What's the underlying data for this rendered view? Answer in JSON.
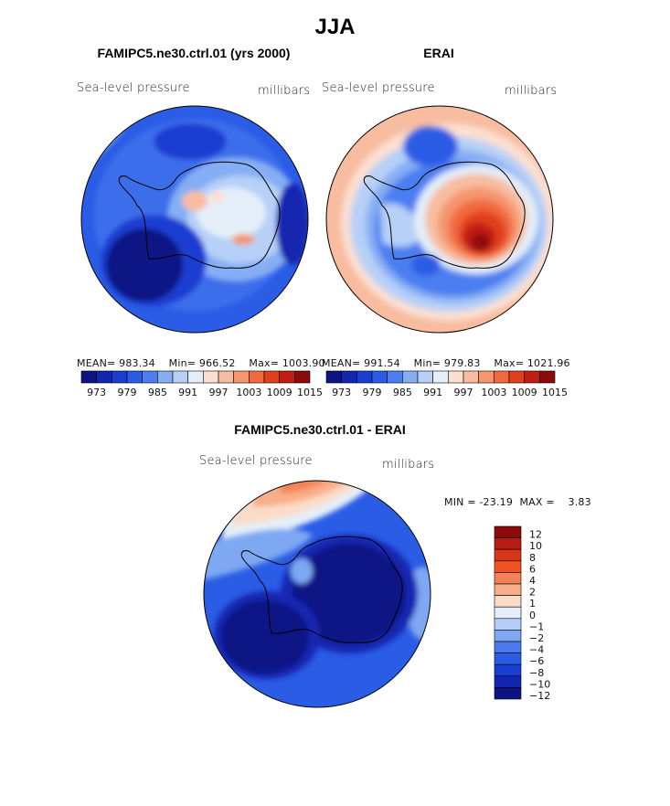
{
  "title": "JJA",
  "chart_data": [
    {
      "type": "heatmap",
      "projection": "south-polar-stereographic",
      "title": "FAMIPC5.ne30.ctrl.01 (yrs 2000)",
      "variable": "Sea-level pressure",
      "units": "millibars",
      "stats": {
        "mean_label": "MEAN=",
        "mean": "983.34",
        "min_label": "Min=",
        "min": "966.52",
        "max_label": "Max=",
        "max": "1003.90"
      },
      "contour_levels": [
        970,
        973,
        976,
        979,
        982,
        985,
        988,
        991,
        994,
        997,
        1000,
        1003,
        1006,
        1009,
        1012,
        1015
      ],
      "colorbar_tick_labels": [
        "973",
        "979",
        "985",
        "991",
        "997",
        "1003",
        "1009",
        "1015"
      ],
      "legend_position": "bottom"
    },
    {
      "type": "heatmap",
      "projection": "south-polar-stereographic",
      "title": "ERAI",
      "variable": "Sea-level pressure",
      "units": "millibars",
      "stats": {
        "mean_label": "MEAN=",
        "mean": "991.54",
        "min_label": "Min=",
        "min": "979.83",
        "max_label": "Max=",
        "max": "1021.96"
      },
      "contour_levels": [
        970,
        973,
        976,
        979,
        982,
        985,
        988,
        991,
        994,
        997,
        1000,
        1003,
        1006,
        1009,
        1012,
        1015
      ],
      "colorbar_tick_labels": [
        "973",
        "979",
        "985",
        "991",
        "997",
        "1003",
        "1009",
        "1015"
      ],
      "legend_position": "bottom"
    },
    {
      "type": "heatmap",
      "projection": "south-polar-stereographic",
      "title": "FAMIPC5.ne30.ctrl.01 - ERAI",
      "variable": "Sea-level pressure",
      "units": "millibars",
      "stats": {
        "min_label": "MIN =",
        "min": "-23.19",
        "max_label": "MAX =",
        "max": "3.83"
      },
      "contour_levels": [
        12,
        10,
        8,
        6,
        4,
        2,
        1,
        0,
        -1,
        -2,
        -4,
        -6,
        -8,
        -10,
        -12
      ],
      "colorbar_tick_labels": [
        "12",
        "10",
        "8",
        "6",
        "4",
        "2",
        "1",
        "0",
        "−1",
        "−2",
        "−4",
        "−6",
        "−8",
        "−10",
        "−12"
      ],
      "legend_position": "right"
    }
  ],
  "colors": {
    "abs_palette": [
      "#0c1484",
      "#1226b0",
      "#1a3ed2",
      "#2a5ce6",
      "#4c7ef0",
      "#86aef4",
      "#b6d0f7",
      "#e3eef9",
      "#fbe0d2",
      "#f8bca0",
      "#f5966e",
      "#f1693f",
      "#e0401e",
      "#c11e12",
      "#8c0a0a"
    ],
    "diff_palette": [
      "#8c0a0a",
      "#b81b10",
      "#d8361a",
      "#f05424",
      "#f58256",
      "#f8ae8a",
      "#fbdcc8",
      "#e4eff9",
      "#b4cef7",
      "#7ea8f2",
      "#4a7aee",
      "#2a5ce6",
      "#1a3ed2",
      "#1226b0",
      "#0c1484"
    ]
  }
}
